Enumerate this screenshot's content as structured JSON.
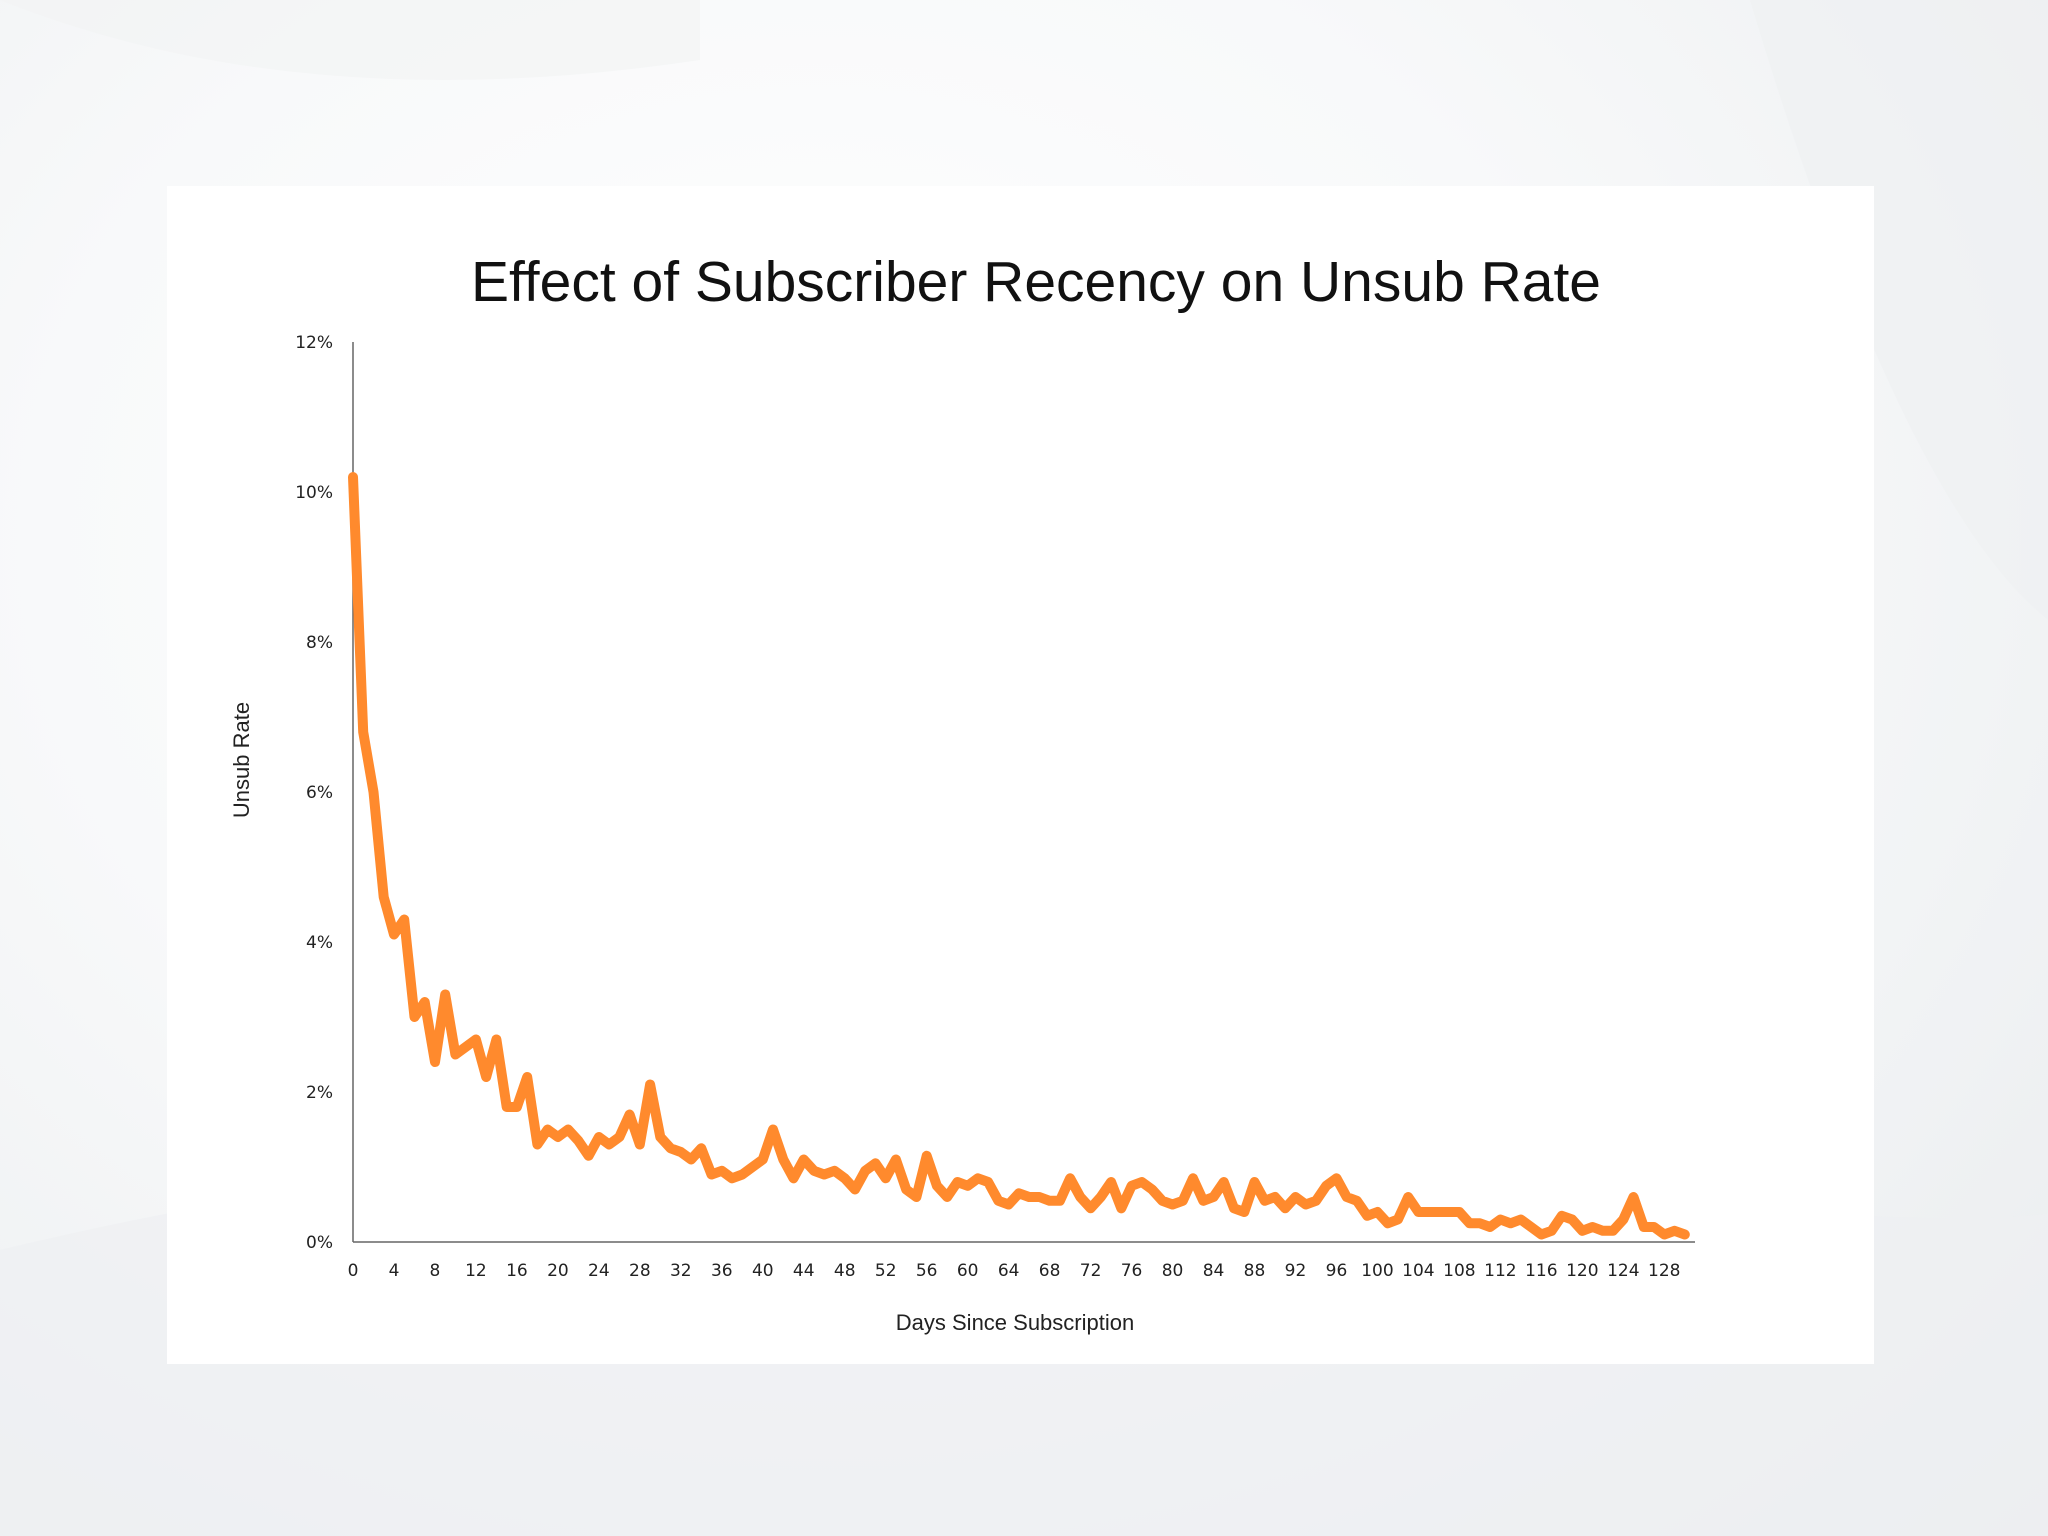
{
  "chart_data": {
    "type": "line",
    "title": "Effect of Subscriber Recency on Unsub Rate",
    "xlabel": "Days Since Subscription",
    "ylabel": "Unsub Rate",
    "ylim": [
      0,
      12
    ],
    "xlim": [
      0,
      131
    ],
    "y_ticks": [
      "0%",
      "2%",
      "4%",
      "6%",
      "8%",
      "10%",
      "12%"
    ],
    "y_tick_values": [
      0,
      2,
      4,
      6,
      8,
      10,
      12
    ],
    "x_ticks": [
      "0",
      "4",
      "8",
      "12",
      "16",
      "20",
      "24",
      "28",
      "32",
      "36",
      "40",
      "44",
      "48",
      "52",
      "56",
      "60",
      "64",
      "68",
      "72",
      "76",
      "80",
      "84",
      "88",
      "92",
      "96",
      "100",
      "104",
      "108",
      "112",
      "116",
      "120",
      "124",
      "128"
    ],
    "x_tick_values": [
      0,
      4,
      8,
      12,
      16,
      20,
      24,
      28,
      32,
      36,
      40,
      44,
      48,
      52,
      56,
      60,
      64,
      68,
      72,
      76,
      80,
      84,
      88,
      92,
      96,
      100,
      104,
      108,
      112,
      116,
      120,
      124,
      128
    ],
    "grid": false,
    "series": [
      {
        "color": "#ff8a2d",
        "x": [
          0,
          1,
          2,
          3,
          4,
          5,
          6,
          7,
          8,
          9,
          10,
          11,
          12,
          13,
          14,
          15,
          16,
          17,
          18,
          19,
          20,
          21,
          22,
          23,
          24,
          25,
          26,
          27,
          28,
          29,
          30,
          31,
          32,
          33,
          34,
          35,
          36,
          37,
          38,
          39,
          40,
          41,
          42,
          43,
          44,
          45,
          46,
          47,
          48,
          49,
          50,
          51,
          52,
          53,
          54,
          55,
          56,
          57,
          58,
          59,
          60,
          61,
          62,
          63,
          64,
          65,
          66,
          67,
          68,
          69,
          70,
          71,
          72,
          73,
          74,
          75,
          76,
          77,
          78,
          79,
          80,
          81,
          82,
          83,
          84,
          85,
          86,
          87,
          88,
          89,
          90,
          91,
          92,
          93,
          94,
          95,
          96,
          97,
          98,
          99,
          100,
          101,
          102,
          103,
          104,
          105,
          106,
          107,
          108,
          109,
          110,
          111,
          112,
          113,
          114,
          115,
          116,
          117,
          118,
          119,
          120,
          121,
          122,
          123,
          124,
          125,
          126,
          127,
          128,
          129,
          130
        ],
        "values": [
          10.2,
          6.8,
          6.0,
          4.6,
          4.1,
          4.3,
          3.0,
          3.2,
          2.4,
          3.3,
          2.5,
          2.6,
          2.7,
          2.2,
          2.7,
          1.8,
          1.8,
          2.2,
          1.3,
          1.5,
          1.4,
          1.5,
          1.35,
          1.15,
          1.4,
          1.3,
          1.4,
          1.7,
          1.3,
          2.1,
          1.4,
          1.25,
          1.2,
          1.1,
          1.25,
          0.9,
          0.95,
          0.85,
          0.9,
          1.0,
          1.1,
          1.5,
          1.1,
          0.85,
          1.1,
          0.95,
          0.9,
          0.95,
          0.85,
          0.7,
          0.95,
          1.05,
          0.85,
          1.1,
          0.7,
          0.6,
          1.15,
          0.75,
          0.6,
          0.8,
          0.75,
          0.85,
          0.8,
          0.55,
          0.5,
          0.65,
          0.6,
          0.6,
          0.55,
          0.55,
          0.85,
          0.6,
          0.45,
          0.6,
          0.8,
          0.45,
          0.75,
          0.8,
          0.7,
          0.55,
          0.5,
          0.55,
          0.85,
          0.55,
          0.6,
          0.8,
          0.45,
          0.4,
          0.8,
          0.55,
          0.6,
          0.45,
          0.6,
          0.5,
          0.55,
          0.75,
          0.85,
          0.6,
          0.55,
          0.35,
          0.4,
          0.25,
          0.3,
          0.6,
          0.4,
          0.4,
          0.4,
          0.4,
          0.4,
          0.25,
          0.25,
          0.2,
          0.3,
          0.25,
          0.3,
          0.2,
          0.1,
          0.15,
          0.35,
          0.3,
          0.15,
          0.2,
          0.15,
          0.15,
          0.3,
          0.6,
          0.2,
          0.2,
          0.1,
          0.15,
          0.1
        ]
      }
    ]
  }
}
